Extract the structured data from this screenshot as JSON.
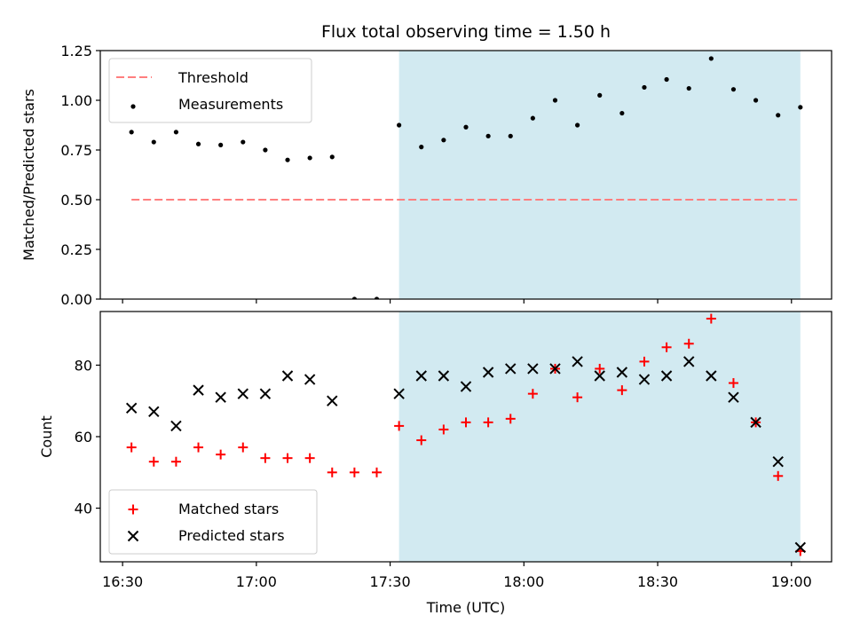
{
  "chart_data": {
    "title": "Flux total observing time = 1.50 h",
    "type": "scatter",
    "colors": {
      "threshold": "#ff7f7f",
      "measurements": "#000000",
      "matched": "#ff0000",
      "predicted": "#000000",
      "shade": "#add8e6"
    },
    "x": {
      "label": "Time (UTC)",
      "range": [
        "16:25",
        "19:09"
      ],
      "ticks": [
        "16:30",
        "17:00",
        "17:30",
        "18:00",
        "18:30",
        "19:00"
      ]
    },
    "shaded_interval": [
      "17:32",
      "19:02"
    ],
    "panels": [
      {
        "ylabel": "Matched/Predicted stars",
        "ylim": [
          0,
          1.25
        ],
        "yticks": [
          "0.00",
          "0.25",
          "0.50",
          "0.75",
          "1.00",
          "1.25"
        ],
        "legend": {
          "position": "upper-left"
        },
        "series": [
          {
            "name": "Threshold",
            "kind": "dashed-line",
            "x": [
              "16:32",
              "19:02"
            ],
            "y": [
              0.5,
              0.5
            ]
          },
          {
            "name": "Measurements",
            "kind": "dot",
            "x": [
              "16:32",
              "16:37",
              "16:42",
              "16:47",
              "16:52",
              "16:57",
              "17:02",
              "17:07",
              "17:12",
              "17:17",
              "17:22",
              "17:27",
              "17:32",
              "17:37",
              "17:42",
              "17:47",
              "17:52",
              "17:57",
              "18:02",
              "18:07",
              "18:12",
              "18:17",
              "18:22",
              "18:27",
              "18:32",
              "18:37",
              "18:42",
              "18:47",
              "18:52",
              "18:57",
              "19:02"
            ],
            "y": [
              0.84,
              0.79,
              0.84,
              0.78,
              0.775,
              0.79,
              0.75,
              0.7,
              0.71,
              0.715,
              0.0,
              0.0,
              0.875,
              0.765,
              0.8,
              0.865,
              0.82,
              0.82,
              0.91,
              1.0,
              0.875,
              1.025,
              0.935,
              1.065,
              1.105,
              1.06,
              1.21,
              1.055,
              1.0,
              0.925,
              0.965
            ]
          }
        ]
      },
      {
        "ylabel": "Count",
        "ylim": [
          25,
          95
        ],
        "yticks": [
          "40",
          "60",
          "80"
        ],
        "legend": {
          "position": "lower-left"
        },
        "series": [
          {
            "name": "Matched stars",
            "kind": "plus",
            "x": [
              "16:32",
              "16:37",
              "16:42",
              "16:47",
              "16:52",
              "16:57",
              "17:02",
              "17:07",
              "17:12",
              "17:17",
              "17:22",
              "17:27",
              "17:32",
              "17:37",
              "17:42",
              "17:47",
              "17:52",
              "17:57",
              "18:02",
              "18:07",
              "18:12",
              "18:17",
              "18:22",
              "18:27",
              "18:32",
              "18:37",
              "18:42",
              "18:47",
              "18:52",
              "18:57",
              "19:02"
            ],
            "y": [
              57,
              53,
              53,
              57,
              55,
              57,
              54,
              54,
              54,
              50,
              50,
              50,
              63,
              59,
              62,
              64,
              64,
              65,
              72,
              79,
              71,
              79,
              73,
              81,
              85,
              86,
              93,
              75,
              64,
              49,
              28
            ]
          },
          {
            "name": "Predicted stars",
            "kind": "x",
            "x": [
              "16:32",
              "16:37",
              "16:42",
              "16:47",
              "16:52",
              "16:57",
              "17:02",
              "17:07",
              "17:12",
              "17:17",
              "17:32",
              "17:37",
              "17:42",
              "17:47",
              "17:52",
              "17:57",
              "18:02",
              "18:07",
              "18:12",
              "18:17",
              "18:22",
              "18:27",
              "18:32",
              "18:37",
              "18:42",
              "18:47",
              "18:52",
              "18:57",
              "19:02"
            ],
            "y": [
              68,
              67,
              63,
              73,
              71,
              72,
              72,
              77,
              76,
              70,
              72,
              77,
              77,
              74,
              78,
              79,
              79,
              79,
              81,
              77,
              78,
              76,
              77,
              81,
              77,
              71,
              64,
              53,
              29
            ]
          }
        ]
      }
    ]
  }
}
